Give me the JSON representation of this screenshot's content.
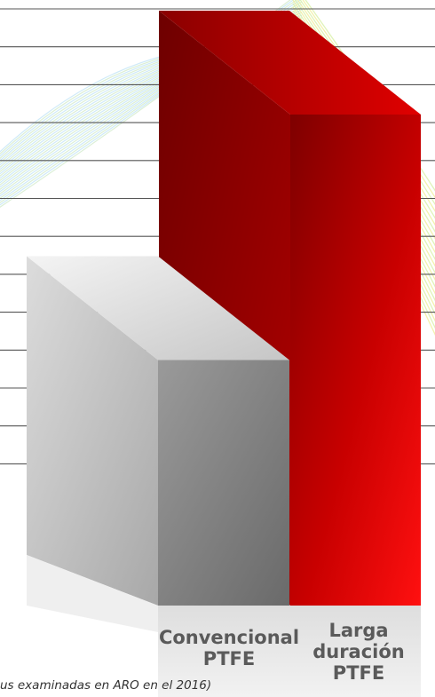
{
  "chart_data": {
    "type": "bar",
    "style": "3d-columns",
    "categories": [
      "Convencional\nPTFE",
      "Larga\nduración\nPTFE"
    ],
    "values": [
      4.3,
      8.6
    ],
    "ylim": [
      0,
      10
    ],
    "grid": true,
    "title": "",
    "xlabel": "",
    "ylabel": "",
    "bar_colors": [
      "#8c8c8c",
      "#d40000"
    ]
  },
  "footnote": "us examinadas en ARO en el 2016)",
  "colors": {
    "gridline": "#555555",
    "label": "#5a5a5a",
    "red_front": "#e00000",
    "gray_front": "#8a8a8a"
  }
}
